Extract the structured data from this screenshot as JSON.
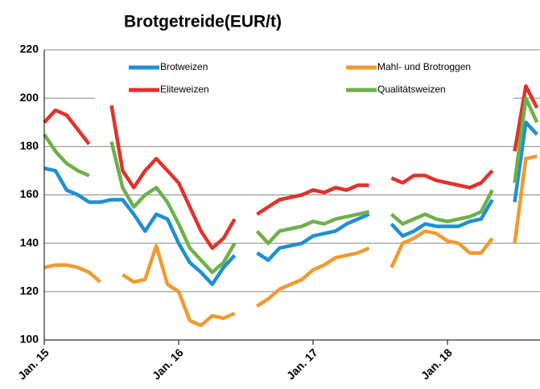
{
  "chart_data": {
    "type": "line",
    "title": "Brotgetreide(EUR/t)",
    "categories": [
      "Jan. 15",
      null,
      null,
      null,
      null,
      null,
      null,
      null,
      null,
      null,
      null,
      null,
      "Jan. 16",
      null,
      null,
      null,
      null,
      null,
      null,
      null,
      null,
      null,
      null,
      null,
      "Jan. 17",
      null,
      null,
      null,
      null,
      null,
      null,
      null,
      null,
      null,
      null,
      null,
      "Jan. 18",
      null,
      null,
      null,
      null,
      null,
      null,
      null,
      null
    ],
    "series": [
      {
        "name": "Brotweizen",
        "color": "#1f8fd2",
        "values": [
          171,
          170,
          162,
          160,
          157,
          157,
          158,
          158,
          152,
          145,
          152,
          150,
          140,
          132,
          128,
          123,
          130,
          135,
          null,
          136,
          133,
          138,
          139,
          140,
          143,
          144,
          145,
          148,
          150,
          152,
          null,
          148,
          143,
          145,
          148,
          147,
          147,
          147,
          149,
          150,
          158,
          null,
          157,
          190,
          185
        ]
      },
      {
        "name": "Mahl- und Brotroggen",
        "color": "#f29a2e",
        "values": [
          130,
          131,
          131,
          130,
          128,
          124,
          null,
          127,
          124,
          125,
          139,
          123,
          120,
          108,
          106,
          110,
          109,
          111,
          null,
          114,
          117,
          121,
          123,
          125,
          129,
          131,
          134,
          135,
          136,
          138,
          null,
          130,
          140,
          142,
          145,
          144,
          141,
          140,
          136,
          136,
          142,
          null,
          140,
          175,
          176
        ]
      },
      {
        "name": "Eliteweizen",
        "color": "#e2312b",
        "values": [
          190,
          195,
          193,
          187,
          181,
          null,
          197,
          170,
          163,
          170,
          175,
          170,
          165,
          155,
          145,
          138,
          142,
          150,
          null,
          152,
          155,
          158,
          159,
          160,
          162,
          161,
          163,
          162,
          164,
          164,
          null,
          167,
          165,
          168,
          168,
          166,
          165,
          164,
          163,
          165,
          170,
          null,
          178,
          205,
          196
        ]
      },
      {
        "name": "Qualitätsweizen",
        "color": "#6cb14a",
        "values": [
          185,
          178,
          173,
          170,
          168,
          null,
          182,
          163,
          155,
          160,
          163,
          157,
          148,
          138,
          133,
          128,
          132,
          140,
          null,
          145,
          140,
          145,
          146,
          147,
          149,
          148,
          150,
          151,
          152,
          153,
          null,
          152,
          148,
          150,
          152,
          150,
          149,
          150,
          151,
          153,
          162,
          null,
          165,
          200,
          190
        ]
      }
    ],
    "ylim": [
      100,
      220
    ],
    "yticks": [
      100,
      120,
      140,
      160,
      180,
      200,
      220
    ],
    "grid": true
  }
}
